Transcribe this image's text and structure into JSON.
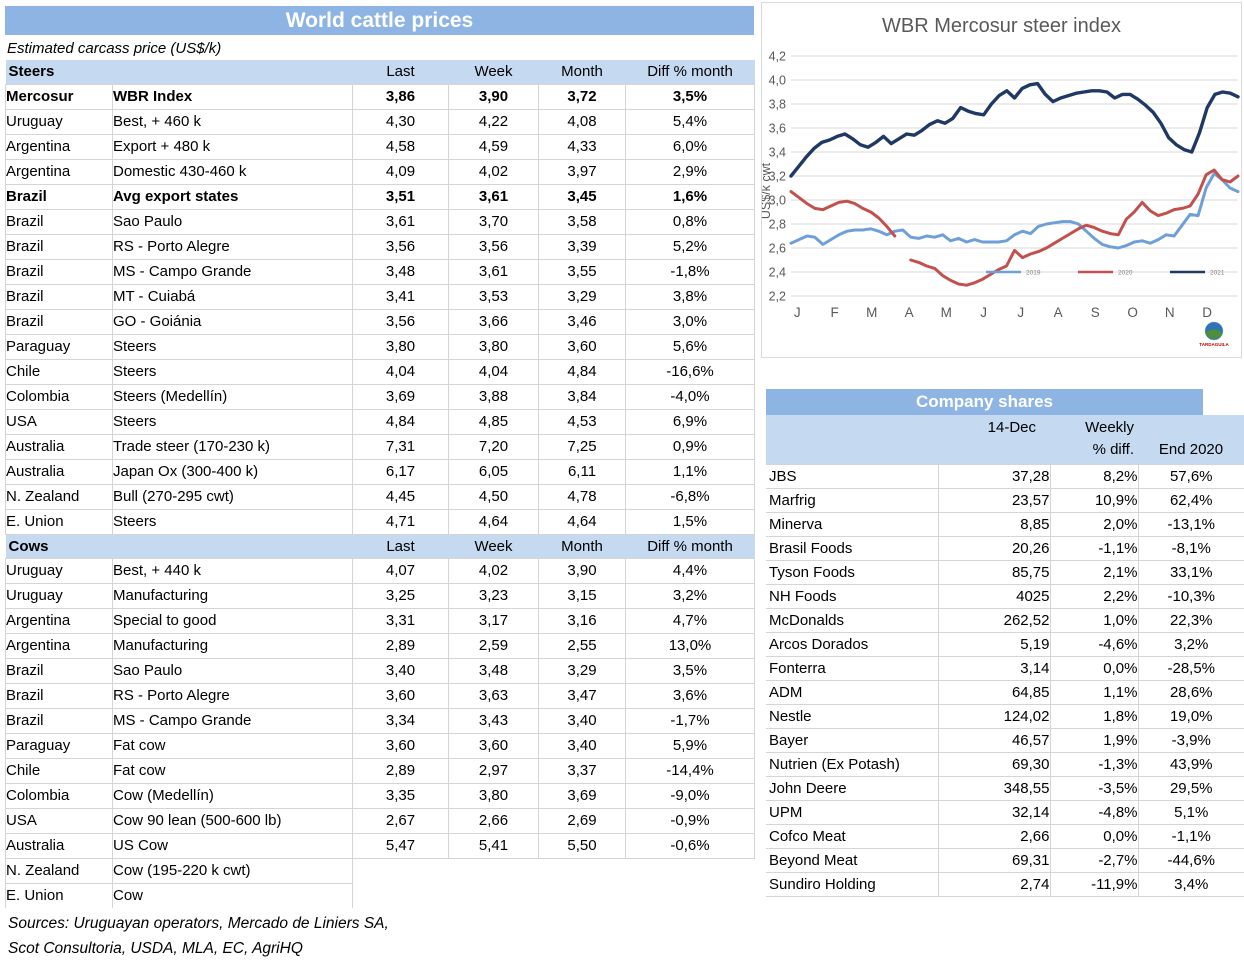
{
  "colors": {
    "header_blue": "#8EB4E3",
    "band_blue": "#C5D9F1",
    "grid_line": "#D5D5D5",
    "chart_grid": "#D9D9D9",
    "axis_text": "#595959",
    "logo_caption_red": "#C00000"
  },
  "price_table": {
    "title": "World cattle prices",
    "subtitle": "Estimated carcass price (US$/k)",
    "col_headers": [
      "Last",
      "Week",
      "Month",
      "Diff % month"
    ],
    "sections": [
      {
        "name": "Steers",
        "rows": [
          {
            "country": "Mercosur",
            "desc": "WBR Index",
            "last": "3,86",
            "week": "3,90",
            "month": "3,72",
            "diff": "3,5%",
            "cls": "bold"
          },
          {
            "country": "Uruguay",
            "desc": "Best, + 460 k",
            "last": "4,30",
            "week": "4,22",
            "month": "4,08",
            "diff": "5,4%"
          },
          {
            "country": "Argentina",
            "desc": "Export + 480 k",
            "last": "4,58",
            "week": "4,59",
            "month": "4,33",
            "diff": "6,0%"
          },
          {
            "country": "Argentina",
            "desc": "Domestic 430-460 k",
            "last": "4,09",
            "week": "4,02",
            "month": "3,97",
            "diff": "2,9%"
          },
          {
            "country": "Brazil",
            "desc": "Avg export states",
            "last": "3,51",
            "week": "3,61",
            "month": "3,45",
            "diff": "1,6%",
            "cls": "bold"
          },
          {
            "country": "Brazil",
            "desc": "Sao Paulo",
            "last": "3,61",
            "week": "3,70",
            "month": "3,58",
            "diff": "0,8%"
          },
          {
            "country": "Brazil",
            "desc": "RS - Porto Alegre",
            "last": "3,56",
            "week": "3,56",
            "month": "3,39",
            "diff": "5,2%"
          },
          {
            "country": "Brazil",
            "desc": "MS - Campo Grande",
            "last": "3,48",
            "week": "3,61",
            "month": "3,55",
            "diff": "-1,8%"
          },
          {
            "country": "Brazil",
            "desc": "MT - Cuiabá",
            "last": "3,41",
            "week": "3,53",
            "month": "3,29",
            "diff": "3,8%"
          },
          {
            "country": "Brazil",
            "desc": "GO - Goiánia",
            "last": "3,56",
            "week": "3,66",
            "month": "3,46",
            "diff": "3,0%"
          },
          {
            "country": "Paraguay",
            "desc": "Steers",
            "last": "3,80",
            "week": "3,80",
            "month": "3,60",
            "diff": "5,6%"
          },
          {
            "country": "Chile",
            "desc": "Steers",
            "last": "4,04",
            "week": "4,04",
            "month": "4,84",
            "diff": "-16,6%"
          },
          {
            "country": "Colombia",
            "desc": "Steers (Medellín)",
            "last": "3,69",
            "week": "3,88",
            "month": "3,84",
            "diff": "-4,0%"
          },
          {
            "country": "USA",
            "desc": "Steers",
            "last": "4,84",
            "week": "4,85",
            "month": "4,53",
            "diff": "6,9%"
          },
          {
            "country": "Australia",
            "desc": "Trade steer (170-230 k)",
            "last": "7,31",
            "week": "7,20",
            "month": "7,25",
            "diff": "0,9%"
          },
          {
            "country": "Australia",
            "desc": "Japan Ox (300-400 k)",
            "last": "6,17",
            "week": "6,05",
            "month": "6,11",
            "diff": "1,1%"
          },
          {
            "country": "N. Zealand",
            "desc": "Bull (270-295 cwt)",
            "last": "4,45",
            "week": "4,50",
            "month": "4,78",
            "diff": "-6,8%"
          },
          {
            "country": "E. Union",
            "desc": "Steers",
            "last": "4,71",
            "week": "4,64",
            "month": "4,64",
            "diff": "1,5%"
          }
        ]
      },
      {
        "name": "Cows",
        "rows": [
          {
            "country": "Uruguay",
            "desc": "Best, + 440 k",
            "last": "4,07",
            "week": "4,02",
            "month": "3,90",
            "diff": "4,4%"
          },
          {
            "country": "Uruguay",
            "desc": "Manufacturing",
            "last": "3,25",
            "week": "3,23",
            "month": "3,15",
            "diff": "3,2%"
          },
          {
            "country": "Argentina",
            "desc": "Special to good",
            "last": "3,31",
            "week": "3,17",
            "month": "3,16",
            "diff": "4,7%"
          },
          {
            "country": "Argentina",
            "desc": "Manufacturing",
            "last": "2,89",
            "week": "2,59",
            "month": "2,55",
            "diff": "13,0%"
          },
          {
            "country": "Brazil",
            "desc": "Sao Paulo",
            "last": "3,40",
            "week": "3,48",
            "month": "3,29",
            "diff": "3,5%"
          },
          {
            "country": "Brazil",
            "desc": "RS - Porto Alegre",
            "last": "3,60",
            "week": "3,63",
            "month": "3,47",
            "diff": "3,6%"
          },
          {
            "country": "Brazil",
            "desc": "MS - Campo Grande",
            "last": "3,34",
            "week": "3,43",
            "month": "3,40",
            "diff": "-1,7%"
          },
          {
            "country": "Paraguay",
            "desc": "Fat cow",
            "last": "3,60",
            "week": "3,60",
            "month": "3,40",
            "diff": "5,9%"
          },
          {
            "country": "Chile",
            "desc": "Fat cow",
            "last": "2,89",
            "week": "2,97",
            "month": "3,37",
            "diff": "-14,4%"
          },
          {
            "country": "Colombia",
            "desc": "Cow (Medellín)",
            "last": "3,35",
            "week": "3,80",
            "month": "3,69",
            "diff": "-9,0%"
          },
          {
            "country": "USA",
            "desc": "Cow 90 lean (500-600 lb)",
            "last": "2,67",
            "week": "2,66",
            "month": "2,69",
            "diff": "-0,9%"
          },
          {
            "country": "Australia",
            "desc": "US Cow",
            "last": "5,47",
            "week": "5,41",
            "month": "5,50",
            "diff": "-0,6%"
          },
          {
            "country": "N. Zealand",
            "desc": "Cow (195-220 k cwt)",
            "last": "",
            "week": "",
            "month": "",
            "diff": "",
            "cls": "partial"
          },
          {
            "country": "E. Union",
            "desc": "Cow",
            "last": "",
            "week": "",
            "month": "",
            "diff": "",
            "cls": "partial partial-end"
          }
        ]
      }
    ],
    "sources": [
      "Sources: Uruguayan operators, Mercado de Liniers SA,",
      "Scot Consultoria, USDA, MLA, EC, AgriHQ"
    ]
  },
  "chart_data": {
    "type": "line",
    "title": "WBR Mercosur steer index",
    "xlabel": "",
    "ylabel": "US$/k cwt",
    "ylim": [
      2.2,
      4.2
    ],
    "grid": true,
    "legend_position": "inside-bottom-right",
    "y_ticks": [
      "4,2",
      "4,0",
      "3,8",
      "3,6",
      "3,4",
      "3,2",
      "3,0",
      "2,8",
      "2,6",
      "2,4",
      "2,2"
    ],
    "x_tick_labels": [
      "J",
      "F",
      "M",
      "A",
      "M",
      "J",
      "J",
      "A",
      "S",
      "O",
      "N",
      "D"
    ],
    "series": [
      {
        "name": "2019",
        "color": "#6F9FD8",
        "values": [
          2.64,
          2.67,
          2.7,
          2.69,
          2.63,
          2.67,
          2.71,
          2.74,
          2.75,
          2.75,
          2.76,
          2.74,
          2.71,
          2.74,
          2.75,
          2.69,
          2.68,
          2.7,
          2.69,
          2.71,
          2.66,
          2.68,
          2.65,
          2.67,
          2.65,
          2.65,
          2.65,
          2.66,
          2.71,
          2.74,
          2.72,
          2.78,
          2.8,
          2.81,
          2.82,
          2.82,
          2.8,
          2.74,
          2.68,
          2.63,
          2.61,
          2.6,
          2.62,
          2.65,
          2.66,
          2.64,
          2.67,
          2.71,
          2.7,
          2.79,
          2.88,
          2.87,
          3.1,
          3.22,
          3.17,
          3.1,
          3.07
        ]
      },
      {
        "name": "2020",
        "color": "#C1504E",
        "values": [
          3.07,
          3.02,
          2.97,
          2.93,
          2.92,
          2.95,
          2.98,
          2.99,
          2.97,
          2.93,
          2.9,
          2.85,
          2.78,
          2.7,
          null,
          2.5,
          2.48,
          2.45,
          2.43,
          2.37,
          2.33,
          2.3,
          2.29,
          2.31,
          2.34,
          2.38,
          2.42,
          2.45,
          2.58,
          2.52,
          2.55,
          2.57,
          2.6,
          2.64,
          2.68,
          2.72,
          2.76,
          2.79,
          2.77,
          2.74,
          2.72,
          2.71,
          2.84,
          2.9,
          2.98,
          2.91,
          2.87,
          2.89,
          2.92,
          2.93,
          2.95,
          3.05,
          3.21,
          3.25,
          3.17,
          3.15,
          3.2
        ]
      },
      {
        "name": "2021",
        "color": "#1F3864",
        "values": [
          3.2,
          3.28,
          3.36,
          3.43,
          3.48,
          3.5,
          3.53,
          3.55,
          3.51,
          3.46,
          3.44,
          3.48,
          3.53,
          3.47,
          3.51,
          3.55,
          3.54,
          3.58,
          3.63,
          3.66,
          3.64,
          3.68,
          3.77,
          3.74,
          3.72,
          3.71,
          3.8,
          3.87,
          3.91,
          3.85,
          3.93,
          3.96,
          3.97,
          3.88,
          3.82,
          3.85,
          3.87,
          3.89,
          3.9,
          3.91,
          3.91,
          3.9,
          3.85,
          3.88,
          3.88,
          3.84,
          3.79,
          3.73,
          3.64,
          3.52,
          3.46,
          3.42,
          3.4,
          3.56,
          3.77,
          3.88,
          3.9,
          3.89,
          3.86
        ]
      }
    ],
    "logo_caption": "TARDAGUILA"
  },
  "company_table": {
    "title": "Company shares",
    "col_headers": {
      "date": "14-Dec",
      "weekly_line1": "Weekly",
      "weekly_line2": "% diff.",
      "end": "End 2020"
    },
    "rows": [
      {
        "name": "JBS",
        "price": "37,28",
        "weekly": "8,2%",
        "end": "57,6%"
      },
      {
        "name": "Marfrig",
        "price": "23,57",
        "weekly": "10,9%",
        "end": "62,4%"
      },
      {
        "name": "Minerva",
        "price": "8,85",
        "weekly": "2,0%",
        "end": "-13,1%"
      },
      {
        "name": "Brasil Foods",
        "price": "20,26",
        "weekly": "-1,1%",
        "end": "-8,1%"
      },
      {
        "name": "Tyson Foods",
        "price": "85,75",
        "weekly": "2,1%",
        "end": "33,1%"
      },
      {
        "name": "NH Foods",
        "price": "4025",
        "weekly": "2,2%",
        "end": "-10,3%"
      },
      {
        "name": "McDonalds",
        "price": "262,52",
        "weekly": "1,0%",
        "end": "22,3%"
      },
      {
        "name": "Arcos Dorados",
        "price": "5,19",
        "weekly": "-4,6%",
        "end": "3,2%"
      },
      {
        "name": "Fonterra",
        "price": "3,14",
        "weekly": "0,0%",
        "end": "-28,5%"
      },
      {
        "name": "ADM",
        "price": "64,85",
        "weekly": "1,1%",
        "end": "28,6%"
      },
      {
        "name": "Nestle",
        "price": "124,02",
        "weekly": "1,8%",
        "end": "19,0%"
      },
      {
        "name": "Bayer",
        "price": "46,57",
        "weekly": "1,9%",
        "end": "-3,9%"
      },
      {
        "name": "Nutrien (Ex Potash)",
        "price": "69,30",
        "weekly": "-1,3%",
        "end": "43,9%"
      },
      {
        "name": "John Deere",
        "price": "348,55",
        "weekly": "-3,5%",
        "end": "29,5%"
      },
      {
        "name": "UPM",
        "price": "32,14",
        "weekly": "-4,8%",
        "end": "5,1%"
      },
      {
        "name": "Cofco Meat",
        "price": "2,66",
        "weekly": "0,0%",
        "end": "-1,1%"
      },
      {
        "name": "Beyond Meat",
        "price": "69,31",
        "weekly": "-2,7%",
        "end": "-44,6%"
      },
      {
        "name": "Sundiro Holding",
        "price": "2,74",
        "weekly": "-11,9%",
        "end": "3,4%"
      }
    ]
  }
}
